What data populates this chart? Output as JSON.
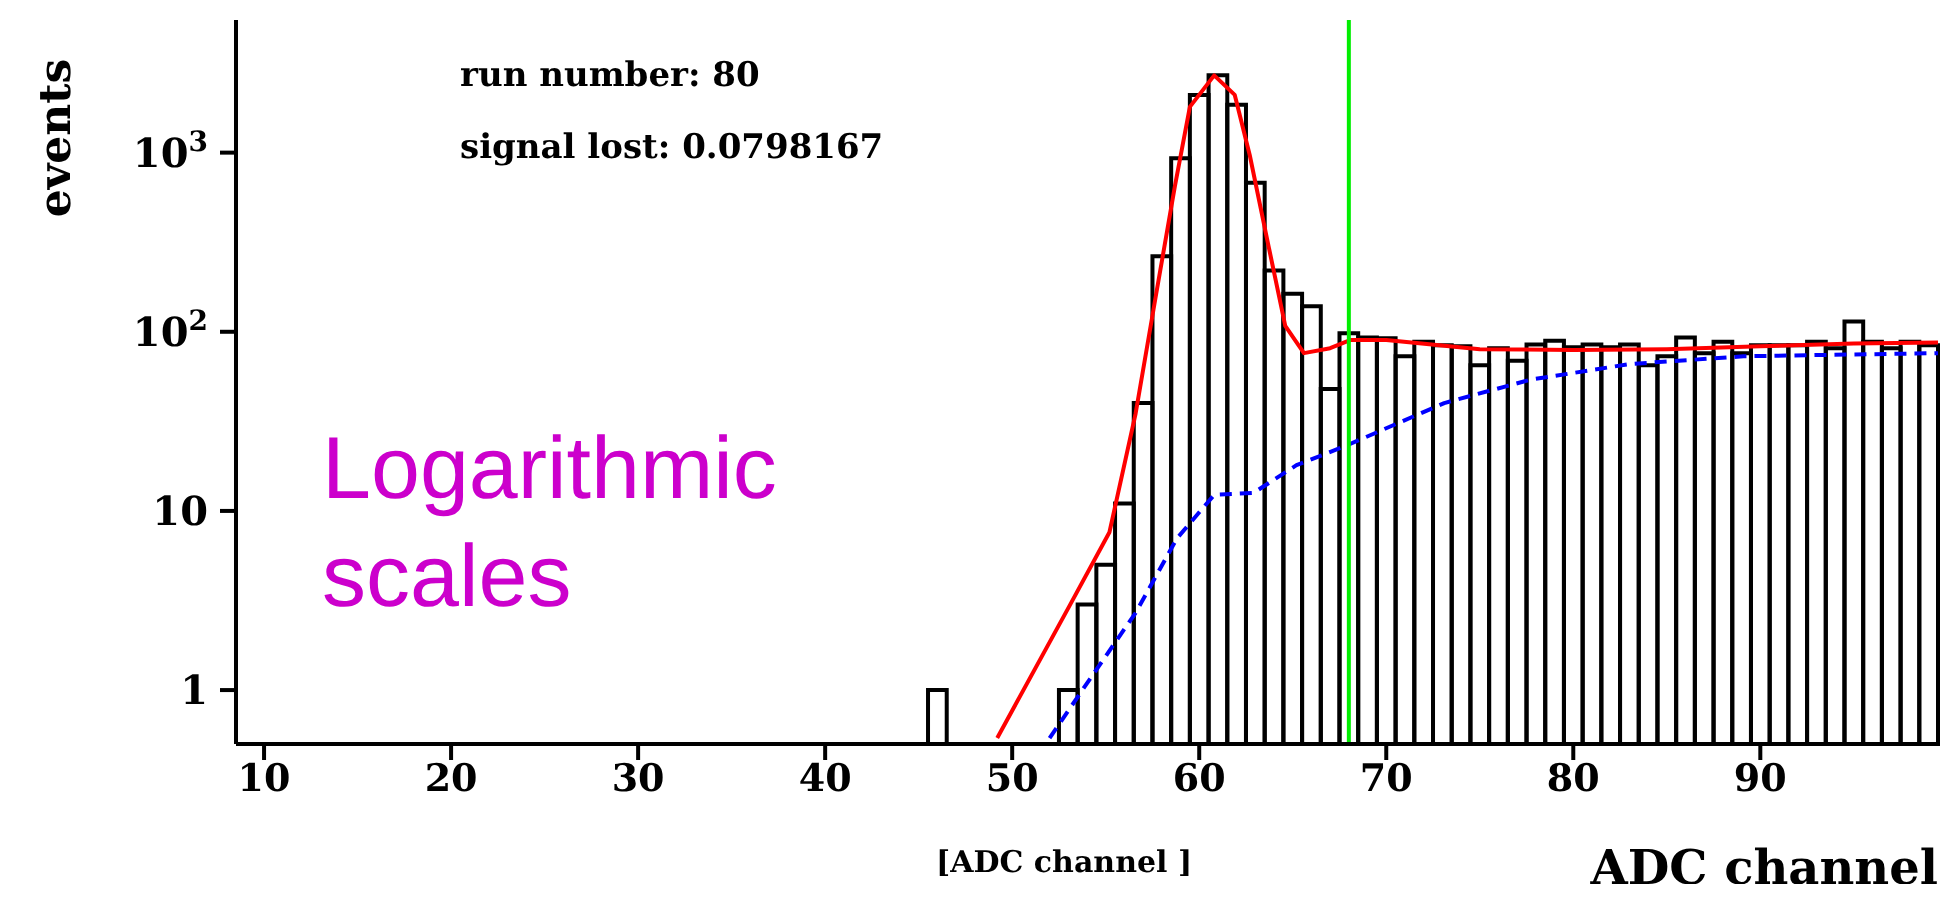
{
  "chart_data": {
    "type": "histogram",
    "xlabel": "ADC channel",
    "ylabel": "events",
    "log": "y",
    "legend": false,
    "xlim": [
      8.5,
      99.5
    ],
    "xticks": [
      10,
      20,
      30,
      40,
      50,
      60,
      70,
      80,
      90
    ],
    "ylim": [
      0.5,
      5500
    ],
    "yticks": [
      1,
      10,
      {
        "value": 100,
        "label": "10$^{2}$"
      },
      {
        "value": 1000,
        "label": "10$^{3}$"
      }
    ],
    "series": [
      {
        "color": "#000000",
        "bins": [
          45.5,
          46.5,
          47.5,
          48.5,
          49.5,
          50.5,
          51.5,
          52.5,
          53.5,
          54.5,
          55.5,
          56.5,
          57.5,
          58.5,
          59.5,
          60.5,
          61.5,
          62.5,
          63.5,
          64.5,
          65.5,
          66.5,
          67.5,
          68.5,
          69.5,
          70.5,
          71.5,
          72.5,
          73.5,
          74.5,
          75.5,
          76.5,
          77.5,
          78.5,
          79.5,
          80.5,
          81.5,
          82.5,
          83.5,
          84.5,
          85.5,
          86.5,
          87.5,
          88.5,
          89.5,
          90.5,
          91.5,
          92.5,
          93.5,
          94.5,
          95.5,
          96.5,
          97.5,
          98.5,
          99.5
        ],
        "values": [
          1,
          null,
          null,
          null,
          null,
          null,
          null,
          1,
          3,
          5,
          11,
          40,
          264,
          930,
          2100,
          2700,
          1850,
          680,
          220,
          163,
          139,
          48,
          98,
          93,
          92,
          73,
          88,
          84,
          83,
          65,
          81,
          69,
          85,
          89,
          82,
          85,
          82,
          85,
          65,
          73,
          93,
          76,
          88,
          76,
          84,
          84,
          84,
          88,
          81,
          114,
          88,
          81,
          88,
          84
        ]
      },
      {
        "type": "line",
        "color": "#ff0000",
        "line_style": "solid",
        "x": [
          49.2,
          53.1,
          55.2,
          56.6,
          57.7,
          58.7,
          59.5,
          60.8,
          61.9,
          62.7,
          63.8,
          64.6,
          65.6,
          67.0,
          68.1,
          70,
          75,
          80,
          85,
          90,
          95,
          99.5
        ],
        "values": [
          0.54,
          3.0,
          7.6,
          35,
          163,
          650,
          1800,
          2700,
          2100,
          970,
          270,
          108,
          76,
          81,
          90,
          90,
          80,
          79,
          80,
          83,
          86,
          87
        ]
      },
      {
        "type": "line",
        "color": "#0000ff",
        "line_style": "dashed",
        "x": [
          52.0,
          54.2,
          56.6,
          58.8,
          60.8,
          62.9,
          65.2,
          67.8,
          73.1,
          77.7,
          83.0,
          89.1,
          99.5
        ],
        "values": [
          0.54,
          1.17,
          2.7,
          7.0,
          12.3,
          12.6,
          18,
          23,
          40,
          54,
          66,
          73,
          76
        ]
      }
    ],
    "ref_lines": [
      {
        "axis": "x",
        "value": 68,
        "color": "#00ee00"
      }
    ],
    "annotations": [
      "run number: 80",
      "signal lost: 0.0798167",
      "Logarithmic scales",
      "[ADC channel ]"
    ]
  }
}
